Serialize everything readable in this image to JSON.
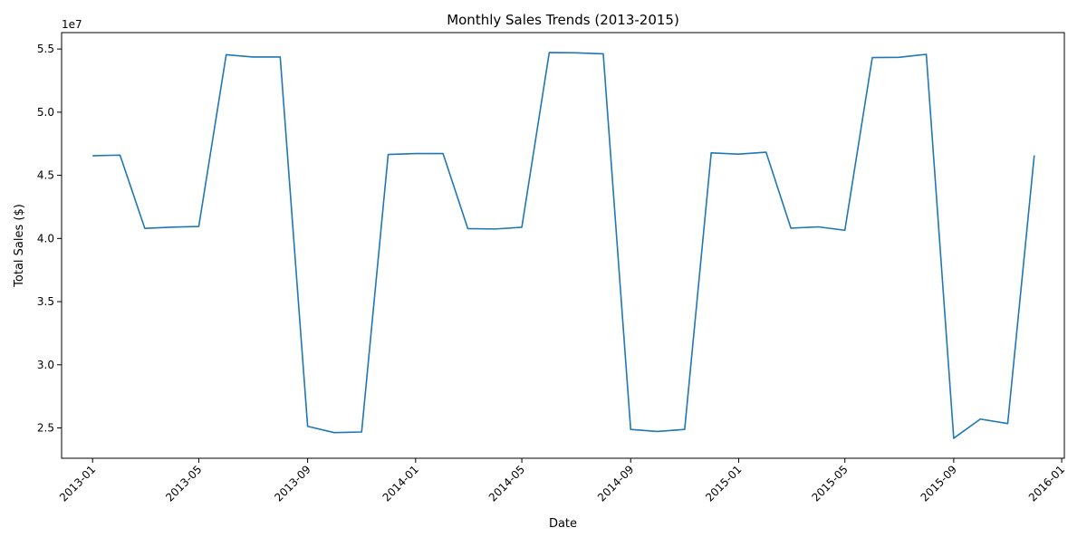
{
  "chart_data": {
    "type": "line",
    "title": "Monthly Sales Trends (2013-2015)",
    "xlabel": "Date",
    "ylabel": "Total Sales ($)",
    "y_offset_label": "1e7",
    "x_axis_type": "date",
    "xlim": [
      "2012-11-27",
      "2016-01-04"
    ],
    "ylim": [
      22600000,
      56300000
    ],
    "grid": false,
    "legend": "none",
    "line_color": "#1f77b4",
    "x_ticks": [
      {
        "date": "2013-01-01",
        "label": "2013-01"
      },
      {
        "date": "2013-05-01",
        "label": "2013-05"
      },
      {
        "date": "2013-09-01",
        "label": "2013-09"
      },
      {
        "date": "2014-01-01",
        "label": "2014-01"
      },
      {
        "date": "2014-05-01",
        "label": "2014-05"
      },
      {
        "date": "2014-09-01",
        "label": "2014-09"
      },
      {
        "date": "2015-01-01",
        "label": "2015-01"
      },
      {
        "date": "2015-05-01",
        "label": "2015-05"
      },
      {
        "date": "2015-09-01",
        "label": "2015-09"
      },
      {
        "date": "2016-01-01",
        "label": "2016-01"
      }
    ],
    "y_ticks": [
      {
        "value": 25000000,
        "label": "2.5"
      },
      {
        "value": 30000000,
        "label": "3.0"
      },
      {
        "value": 35000000,
        "label": "3.5"
      },
      {
        "value": 40000000,
        "label": "4.0"
      },
      {
        "value": 45000000,
        "label": "4.5"
      },
      {
        "value": 50000000,
        "label": "5.0"
      },
      {
        "value": 55000000,
        "label": "5.5"
      }
    ],
    "series": [
      {
        "x": [
          "2013-01-01",
          "2013-02-01",
          "2013-03-01",
          "2013-04-01",
          "2013-05-01",
          "2013-06-01",
          "2013-07-01",
          "2013-08-01",
          "2013-09-01",
          "2013-10-01",
          "2013-11-01",
          "2013-12-01",
          "2014-01-01",
          "2014-02-01",
          "2014-03-01",
          "2014-04-01",
          "2014-05-01",
          "2014-06-01",
          "2014-07-01",
          "2014-08-01",
          "2014-09-01",
          "2014-10-01",
          "2014-11-01",
          "2014-12-01",
          "2015-01-01",
          "2015-02-01",
          "2015-03-01",
          "2015-04-01",
          "2015-05-01",
          "2015-06-01",
          "2015-07-01",
          "2015-08-01",
          "2015-09-01",
          "2015-10-01",
          "2015-11-01",
          "2015-12-01"
        ],
        "values": [
          46550000,
          46600000,
          40800000,
          40900000,
          40950000,
          54550000,
          54370000,
          54370000,
          25130000,
          24630000,
          24680000,
          46650000,
          46720000,
          46720000,
          40780000,
          40750000,
          40890000,
          54720000,
          54700000,
          54620000,
          24880000,
          24720000,
          24880000,
          46780000,
          46680000,
          46830000,
          40820000,
          40920000,
          40650000,
          54320000,
          54340000,
          54580000,
          24180000,
          25700000,
          25350000,
          46580000
        ]
      }
    ]
  }
}
